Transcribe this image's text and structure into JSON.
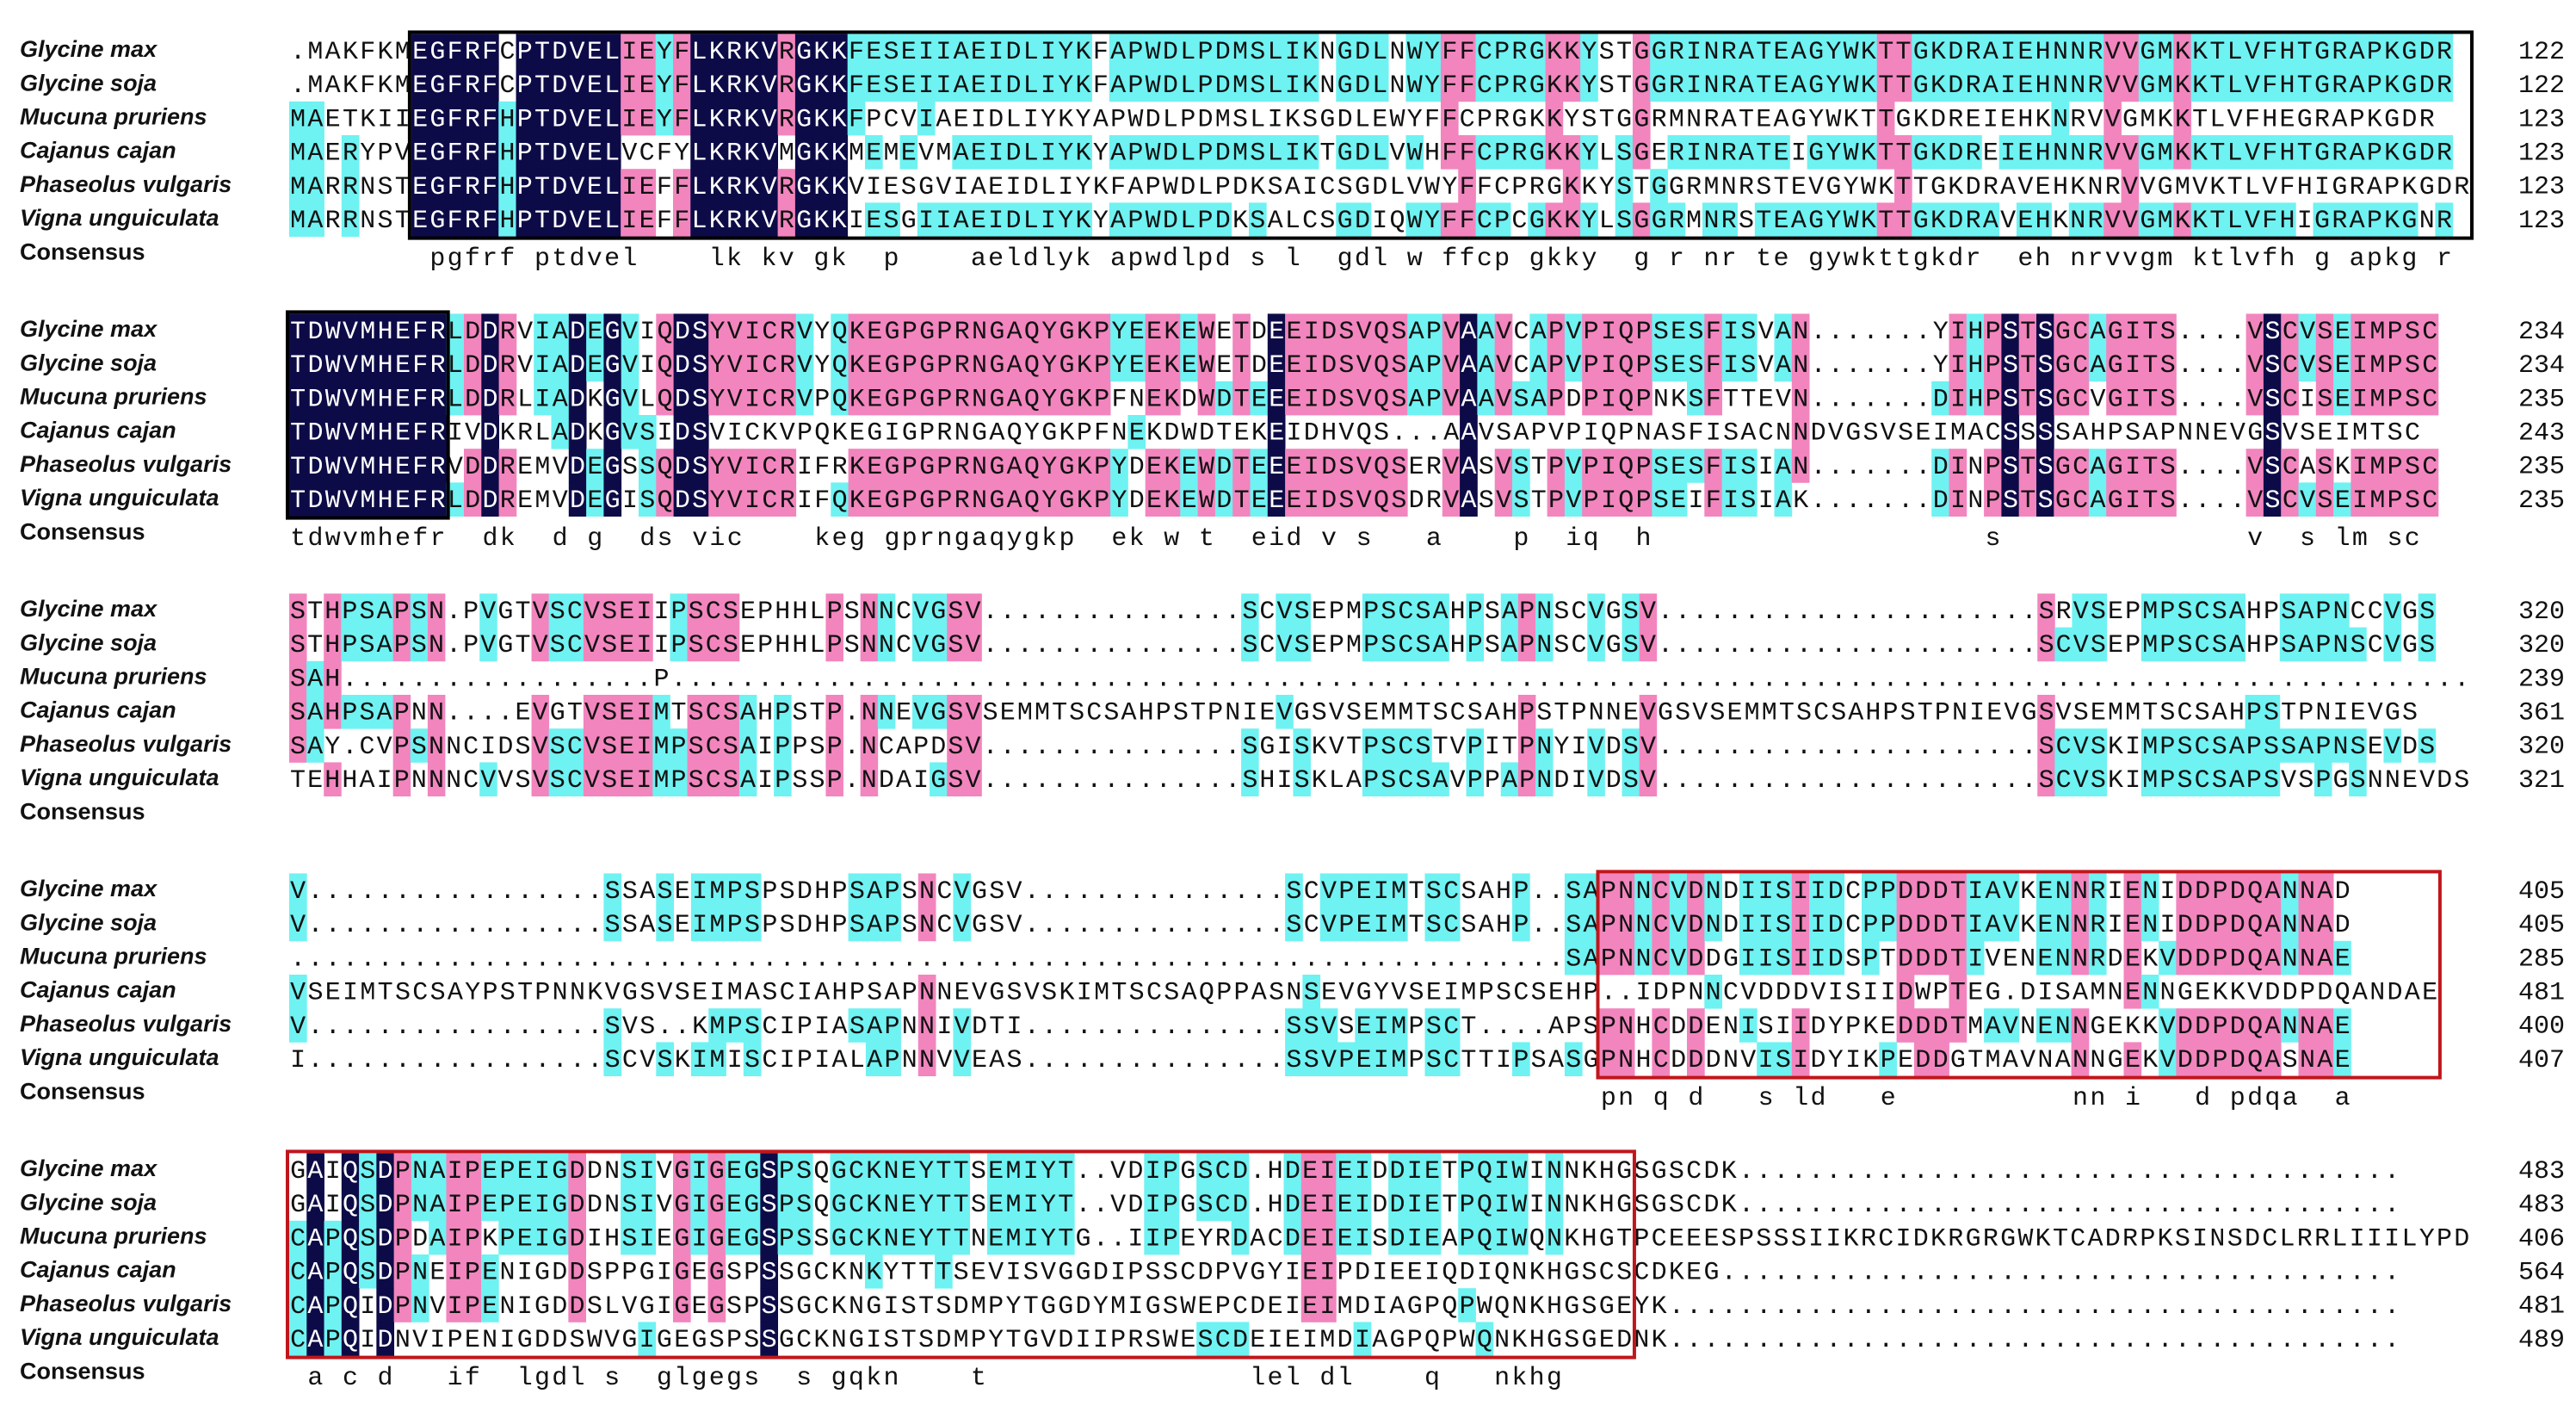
{
  "blocks": [
    {
      "rows": [
        {
          "name": "Glycine max",
          "seq": ".MAKFKMEGFRFCPTDVELIEYFLKRKVRGKKFESEIIAEIDLIYKFAPWDLPDMSLIKNGDLNWYFFCPRGKKYSTGGRINRATEAGYWKTTGKDRAIEHNNRVVGMKKTLVFHTGRAPKGDR",
          "end": 122
        },
        {
          "name": "Glycine soja",
          "seq": ".MAKFKMEGFRFCPTDVELIEYFLKRKVRGKKFESEIIAEIDLIYKFAPWDLPDMSLIKNGDLNWYFFCPRGKKYSTGGRINRATEAGYWKTTGKDRAIEHNNRVVGMKKTLVFHTGRAPKGDR",
          "end": 122
        },
        {
          "name": "Mucuna pruriens",
          "seq": "MAETKIIEGFRFHPTDVELIEYFLKRKVRGKKFPCVIAEIDLIYKYAPWDLPDMSLIKSGDLEWYFFCPRGKKYSTGGRMNRATEAGYWKTTGKDREIEHKNRVVGMKKTLVFHEGRAPKGDR",
          "end": 123
        },
        {
          "name": "Cajanus cajan",
          "seq": "MAERYPVEGFRFHPTDVELVCFYLKRKVMGKKMEMEVMAEIDLIYKYAPWDLPDMSLIKTGDLVWHFFCPRGKKYLSGERINRATEIGYWKTTGKDREIEHNNRVVGMKKTLVFHTGRAPKGDR",
          "end": 123
        },
        {
          "name": "Phaseolus vulgaris",
          "seq": "MARRNSTEGFRFHPTDVELIEFFLKRKVRGKKVIESGVIAEIDLIYKFAPWDLPDKSAICSGDLVWYFFCPRGKKYSTGGRMNRSTEVGYWKTTGKDRAVEHKNRVVGMVKTLVFHIGRAPKGDR",
          "end": 123
        },
        {
          "name": "Vigna unguiculata",
          "seq": "MARRNSTEGFRFHPTDVELIEFFLKRKVRGKKIESGIIAEIDLIYKYAPWDLPDKSALCSGDIQWYFFCPCGKKYLSGGRMNRSTEAGYWKTTGKDRAVEHKNRVVGMKKTLVFHIGRAPKGNR",
          "end": 123
        }
      ],
      "consensus_label": "Consensus",
      "consensus": "        pgfrf ptdvel    lk kv gk  p    aeldlyk apwdlpd s l  gdl w ffcp gkky  g r nr te gywkttgkdr  eh nrvvgm ktlvfh g apkg r"
    },
    {
      "rows": [
        {
          "name": "Glycine max",
          "seq": "TDWVMHEFRLDDRVIADEGVIQDSYVICRVYQKEGPGPRNGAQYGKPYEEKEWETDEEIDSVQSAPVAAVCAPVPIQPSESFISVAN.......YIHPSTSGCAGITS....VSCVSEIMPSC",
          "end": 234
        },
        {
          "name": "Glycine soja",
          "seq": "TDWVMHEFRLDDRVIADEGVIQDSYVICRVYQKEGPGPRNGAQYGKPYEEKEWETDEEIDSVQSAPVAAVCAPVPIQPSESFISVAN.......YIHPSTSGCAGITS....VSCVSEIMPSC",
          "end": 234
        },
        {
          "name": "Mucuna pruriens",
          "seq": "TDWVMHEFRLDDRLIADKGVLQDSYVICRVPQKEGPGPRNGAQYGKPFNEKDWDTEEEIDSVQSAPVAAVSAPDPIQPNKSFTTEVN.......DIHPSTSGCVGITS....VSCISEIMPSC",
          "end": 235
        },
        {
          "name": "Cajanus cajan",
          "seq": "TDWVMHEFRIVDKRLADKGVSIDSVICKVPQKEGIGPRNGAQYGKPFNEKDWDTEKEIDHVQS...AAVSAPVPIQPNASFISACNNDVGSVSEIMACSSSSAHPSAPNNEVGSVSEIMTSC",
          "end": 243
        },
        {
          "name": "Phaseolus vulgaris",
          "seq": "TDWVMHEFRVDDREMVDEGSSQDSYVICRIFRKEGPGPRNGAQYGKPYDEKEWDTEEEIDSVQSERVASVSTPVPIQPSESFISIAN.......DINPSTSGCAGITS....VSCASKIMPSC",
          "end": 235
        },
        {
          "name": "Vigna unguiculata",
          "seq": "TDWVMHEFRLDDREMVDEGISQDSYVICRIFQKEGPGPRNGAQYGKPYDEKEWDTEEEIDSVQSDRVASVSTPVPIQPSEIFISIAK.......DINPSTSGCAGITS....VSCVSEIMPSC",
          "end": 235
        }
      ],
      "consensus_label": "Consensus",
      "consensus": "tdwvmhefr  dk  d g  ds vic    keg gprngaqygkp  ek w t  eid v s   a    p  iq  h                   s              v  s lm sc"
    },
    {
      "rows": [
        {
          "name": "Glycine max",
          "seq": "STHPSAPSN.PVGTVSCVSEIIPSCSEPHHLPSNNCVGSV...............SCVSEPMPSCSAHPSAPNSCVGSV......................SRVSEPMPSCSAHPSAPNCCVGS",
          "end": 320
        },
        {
          "name": "Glycine soja",
          "seq": "STHPSAPSN.PVGTVSCVSEIIPSCSEPHHLPSNNCVGSV...............SCVSEPMPSCSAHPSAPNSCVGSV......................SCVSEPMPSCSAHPSAPNSCVGS",
          "end": 320
        },
        {
          "name": "Mucuna pruriens",
          "seq": "SAH..................P........................................................................................................",
          "end": 239
        },
        {
          "name": "Cajanus cajan",
          "seq": "SAHPSAPNN....EVGTVSEIMTSCSAHPSTP.NNEVGSVSEMMTSCSAHPSTPNIEVGSVSEMMTSCSAHPSTPNNEVGSVSEMMTSCSAHPSTPNIEVGSVSEMMTSCSAHPSTPNIEVGS",
          "end": 361
        },
        {
          "name": "Phaseolus vulgaris",
          "seq": "SAY.CVPSNNCIDSVSCVSEIMPSCSAIPPSP.NCAPDSV...............SGISKVTPSCSTVPITPNYIVDSV......................SCVSKIMPSCSAPSSAPNSEVDS",
          "end": 320
        },
        {
          "name": "Vigna unguiculata",
          "seq": "TEHHAIPNNNCVVSVSCVSEIMPSCSAIPSSP.NDAIGSV...............SHISKLAPSCSAVPPAPNDIVDSV......................SCVSKIMPSCSAPSVSPGSNNEVDS",
          "end": 321
        }
      ],
      "consensus_label": "Consensus"
    },
    {
      "rows": [
        {
          "name": "Glycine max",
          "seq": "V.................SSASEIMPSPSDHPSAPSNCVGSV...............SCVPEIMTSCSAHP..SAPNNCVDNDIISIIDCPPDDDTIAVKENNRIENIDDPDQANNAD",
          "end": 405
        },
        {
          "name": "Glycine soja",
          "seq": "V.................SSASEIMPSPSDHPSAPSNCVGSV...............SCVPEIMTSCSAHP..SAPNNCVDNDIISIIDCPPDDDTIAVKENNRIENIDDPDQANNAD",
          "end": 405
        },
        {
          "name": "Mucuna pruriens",
          "seq": ".........................................................................SAPNNCVDDGIISIIDSPTDDDTIVENENNRDEKVDDPDQANNAE",
          "end": 285
        },
        {
          "name": "Cajanus cajan",
          "seq": "VSEIMTSCSAYPSTPNNKVGSVSEIMASCIAHPSAPNNEVGSVSKIMTSCSAQPPASNSEVGYVSEIMPSCSEHP..IDPNNCVDDDVISIIDWPTEG.DISAMNENNGEKKVDDPDQANDAE",
          "end": 481
        },
        {
          "name": "Phaseolus vulgaris",
          "seq": "V.................SVS..KMPSCIPIASAPNNIVDTI...............SSVSEIMPSCT....APSPNHCDDENISIIDYPKEDDDTMAVNENNGEKKVDDPDQANNAE",
          "end": 400
        },
        {
          "name": "Vigna unguiculata",
          "seq": "I.................SCVSKIMISCIPIALAPNNVVEAS...............SSVPEIMPSCTTIPSASGPNHCDDDNVISIDYIKPEDDGTMAVNANNGEKVDDPDQASNAE",
          "end": 407
        }
      ],
      "consensus_label": "Consensus",
      "consensus": "                                                                           pn q d   s ld   e          nn i   d pdqa  a"
    },
    {
      "rows": [
        {
          "name": "Glycine max",
          "seq": "GAIQSDPNAIPEPEIGDDNSIVGIGEGSPSQGCKNEYTTSEMIYT..VDIPGSCD.HDEIEIDDIETPQIWINNKHGSGSCDK......................................",
          "end": 483
        },
        {
          "name": "Glycine soja",
          "seq": "GAIQSDPNAIPEPEIGDDNSIVGIGEGSPSQGCKNEYTTSEMIYT..VDIPGSCD.HDEIEIDDIETPQIWINNKHGSGSCDK......................................",
          "end": 483
        },
        {
          "name": "Mucuna pruriens",
          "seq": "CAPQSDPDAIPKPEIGDIHSIEGIGEGSPSSGCKNEYTTNEMIYTG..IIPEYRDACDEIEISDIEAPQIWQNKHGTPCEEESPSSSIIKRCIDKRGRGWKTCADRPKSINSDCLRRLIIILYPD",
          "end": 406
        },
        {
          "name": "Cajanus cajan",
          "seq": "CAPQSDPNEIPENIGDDSPPGIGEGSPSSGCKNKYTTTSEVISVGGDIPSSCDPVGYIEIPDIEEIQDIQNKHGSCSCDKEG.......................................",
          "end": 564
        },
        {
          "name": "Phaseolus vulgaris",
          "seq": "CAPQIDPNVIPENIGDDSLVGIGEGSPSSGCKNGISTSDMPYTGGDYMIGSWEPCDEIEIMDIAGPQPWQNKHGSGEYK..........................................",
          "end": 481
        },
        {
          "name": "Vigna unguiculata",
          "seq": "CAPQIDNVIPENIGDDSWVGIGEGSPSSGCKNGISTSDMPYTGVDIIPRSWESCDEIEIMDIAGPQPWQNKHGSGEDNK..........................................",
          "end": 489
        }
      ],
      "consensus_label": "Consensus",
      "consensus": " a c d   if  lgdl s  glgegs  s gqkn    t               lel dl    q   nkhg"
    }
  ]
}
